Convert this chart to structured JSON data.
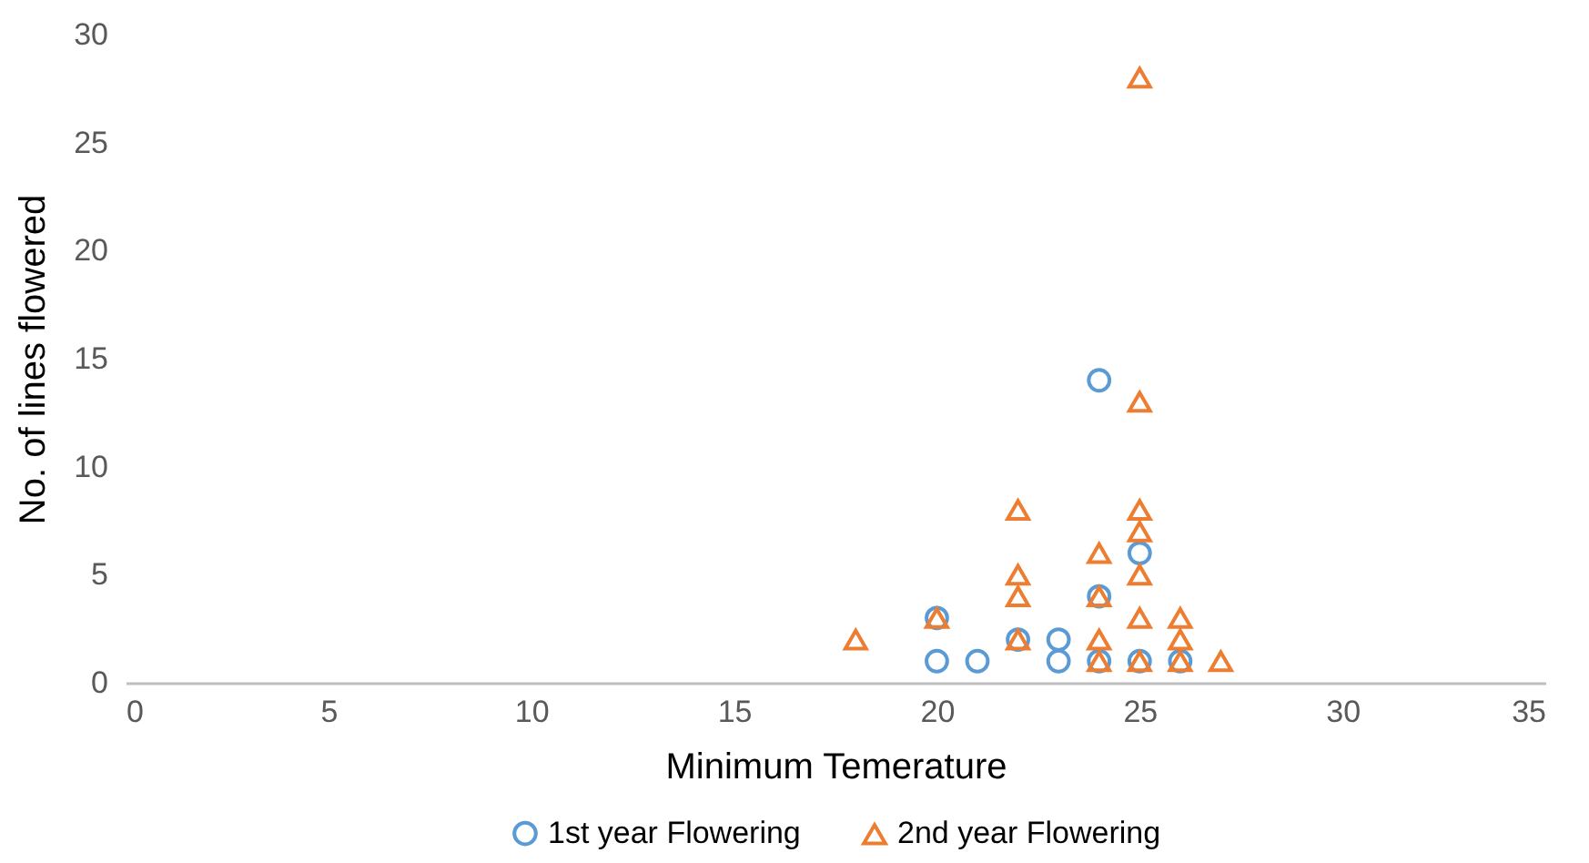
{
  "chart_data": {
    "type": "scatter",
    "xlabel": "Minimum Temerature",
    "ylabel": "No. of lines flowered",
    "xlim": [
      0,
      35
    ],
    "xticks": [
      0,
      5,
      10,
      15,
      20,
      25,
      30,
      35
    ],
    "ylim": [
      0,
      30
    ],
    "yticks": [
      0,
      5,
      10,
      15,
      20,
      25,
      30
    ],
    "grid": false,
    "legend": "bottom",
    "series": [
      {
        "name": "1st year Flowering",
        "color": "#5b9bd5",
        "marker": "circle",
        "x": [
          20,
          20,
          21,
          22,
          23,
          23,
          24,
          24,
          24,
          25,
          25,
          26
        ],
        "values": [
          3,
          1,
          1,
          2,
          2,
          1,
          14,
          4,
          1,
          6,
          1,
          1
        ]
      },
      {
        "name": "2nd year Flowering",
        "color": "#ed7d31",
        "marker": "triangle",
        "x": [
          18,
          20,
          22,
          22,
          22,
          22,
          24,
          24,
          24,
          24,
          25,
          25,
          25,
          25,
          25,
          25,
          25,
          26,
          26,
          26,
          27
        ],
        "values": [
          2,
          3,
          8,
          5,
          4,
          2,
          6,
          4,
          2,
          1,
          28,
          13,
          8,
          7,
          5,
          3,
          1,
          3,
          2,
          1,
          1
        ]
      }
    ]
  }
}
